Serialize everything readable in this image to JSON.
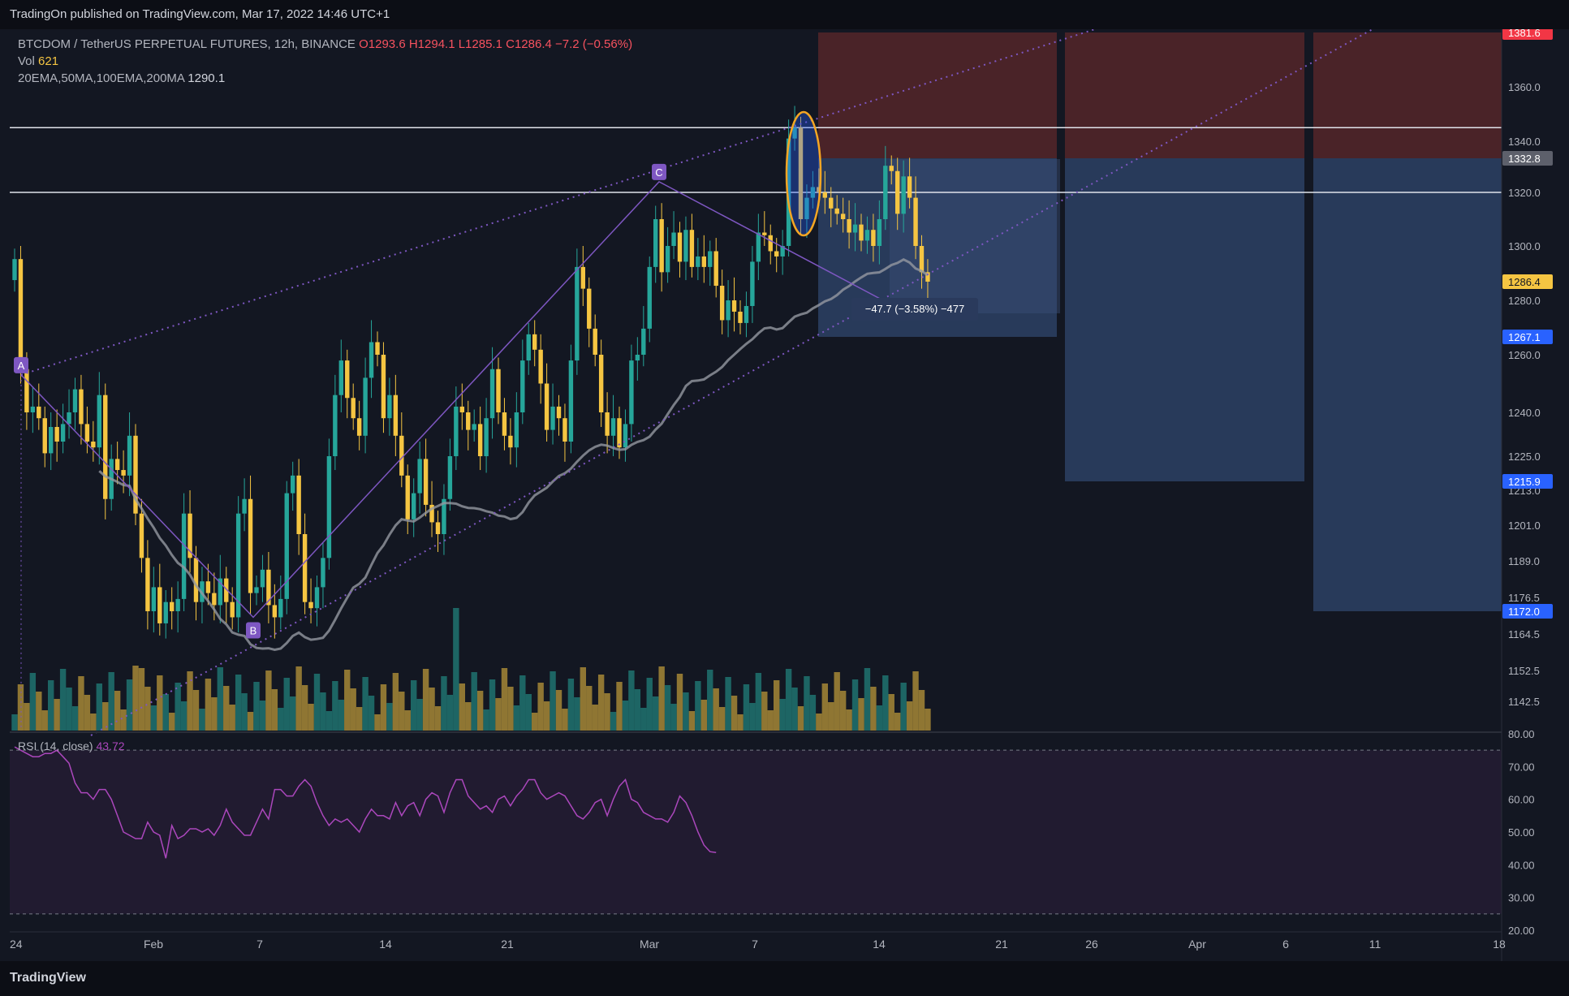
{
  "header": {
    "published": "TradingOn published on TradingView.com, Mar 17, 2022 14:46 UTC+1"
  },
  "legend": {
    "symbol": "BTCDOM / TetherUS PERPETUAL FUTURES, 12h, BINANCE",
    "open": "O1293.6",
    "high": "H1294.1",
    "low": "L1285.1",
    "close": "C1286.4",
    "change": "−7.2 (−0.56%)",
    "vol_label": "Vol",
    "vol_value": "621",
    "ema_label": "20EMA,50MA,100EMA,200MA",
    "ema_value": "1290.1"
  },
  "rsi": {
    "label": "RSI (14, close)",
    "value": "43.72"
  },
  "footer": {
    "brand": "TradingView"
  },
  "measure": {
    "text": "−47.7 (−3.58%) −477"
  },
  "colors": {
    "bg": "#131722",
    "up": "#26a69a",
    "down": "#f5c542",
    "rsi": "#ab47bc",
    "pattern": "#7e57c2",
    "ma": "#9598a1",
    "stop_zone": "#4a2328",
    "target_zone": "#283a5a",
    "ellipse": "#f5a623"
  },
  "pattern_labels": [
    "A",
    "B",
    "C"
  ],
  "chart_data": {
    "type": "candlestick",
    "price_axis_labels": [
      "1360.0",
      "1340.0",
      "1320.0",
      "1300.0",
      "1280.0",
      "1260.0",
      "1240.0",
      "1225.0",
      "1213.0",
      "1201.0",
      "1189.0",
      "1176.5",
      "1164.5",
      "1152.5",
      "1142.5"
    ],
    "price_tags": [
      {
        "label": "1381.6",
        "color": "#f23645"
      },
      {
        "label": "1332.8",
        "color": "#5d606b"
      },
      {
        "label": "1286.4",
        "color": "#f5c542"
      },
      {
        "label": "1267.1",
        "color": "#2962ff"
      },
      {
        "label": "1215.9",
        "color": "#2962ff"
      },
      {
        "label": "1172.0",
        "color": "#2962ff"
      }
    ],
    "rsi_axis_labels": [
      "80.00",
      "70.00",
      "60.00",
      "50.00",
      "40.00",
      "30.00",
      "20.00"
    ],
    "x_tick_labels": [
      "24",
      "Feb",
      "7",
      "14",
      "21",
      "Mar",
      "7",
      "14",
      "21",
      "26",
      "Apr",
      "6",
      "11",
      "18"
    ],
    "horizontal_levels": [
      1345,
      1320
    ],
    "zones": [
      {
        "type": "stop",
        "from": 1332.8,
        "to": 1381.6
      },
      {
        "type": "target",
        "from": 1267.1,
        "to": 1332.8
      },
      {
        "type": "target",
        "from": 1215.9,
        "to": 1332.8
      },
      {
        "type": "target",
        "from": 1172.0,
        "to": 1332.8
      }
    ],
    "pattern_points": {
      "A": 1253,
      "B": 1170,
      "C": 1324
    },
    "close_series": [
      1295,
      1255,
      1240,
      1242,
      1238,
      1226,
      1235,
      1230,
      1236,
      1240,
      1248,
      1236,
      1230,
      1228,
      1246,
      1210,
      1224,
      1220,
      1218,
      1232,
      1205,
      1190,
      1172,
      1180,
      1168,
      1175,
      1172,
      1176,
      1205,
      1190,
      1175,
      1182,
      1178,
      1174,
      1183,
      1175,
      1170,
      1205,
      1210,
      1178,
      1180,
      1186,
      1174,
      1170,
      1176,
      1212,
      1218,
      1198,
      1175,
      1173,
      1180,
      1190,
      1225,
      1246,
      1258,
      1245,
      1238,
      1232,
      1252,
      1265,
      1260,
      1238,
      1246,
      1232,
      1218,
      1203,
      1212,
      1224,
      1208,
      1202,
      1198,
      1210,
      1225,
      1242,
      1240,
      1234,
      1236,
      1225,
      1238,
      1255,
      1240,
      1232,
      1228,
      1240,
      1258,
      1268,
      1262,
      1250,
      1234,
      1242,
      1238,
      1230,
      1258,
      1292,
      1284,
      1270,
      1260,
      1240,
      1232,
      1238,
      1228,
      1236,
      1258,
      1260,
      1270,
      1292,
      1310,
      1290,
      1300,
      1305,
      1294,
      1306,
      1292,
      1296,
      1292,
      1298,
      1285,
      1273,
      1280,
      1276,
      1272,
      1278,
      1294,
      1305,
      1304,
      1298,
      1296,
      1300,
      1341,
      1345,
      1310,
      1318,
      1322,
      1320,
      1318,
      1314,
      1312,
      1310,
      1305,
      1308,
      1302,
      1306,
      1300,
      1310,
      1330,
      1328,
      1312,
      1326,
      1318,
      1300,
      1290,
      1286.4
    ],
    "rsi_series": [
      76,
      75,
      74,
      73,
      73,
      74,
      74,
      75,
      73,
      71,
      65,
      62,
      62,
      60,
      63,
      63,
      60,
      55,
      50,
      49,
      48,
      48,
      53,
      50,
      49,
      42,
      52,
      48,
      49,
      51,
      51,
      50,
      51,
      49,
      52,
      57,
      53,
      51,
      49,
      49,
      53,
      57,
      54,
      63,
      63,
      61,
      61,
      64,
      66,
      64,
      59,
      55,
      52,
      54,
      53,
      54,
      52,
      50,
      54,
      57,
      55,
      55,
      54,
      59,
      55,
      58,
      59,
      55,
      60,
      62,
      61,
      56,
      62,
      66,
      66,
      61,
      59,
      57,
      58,
      56,
      60,
      61,
      58,
      61,
      63,
      66,
      66,
      62,
      60,
      61,
      62,
      61,
      58,
      55,
      54,
      56,
      59,
      60,
      55,
      60,
      64,
      66,
      60,
      59,
      56,
      55,
      54,
      54,
      53,
      56,
      61,
      59,
      55,
      50,
      46,
      44,
      43.72
    ]
  }
}
